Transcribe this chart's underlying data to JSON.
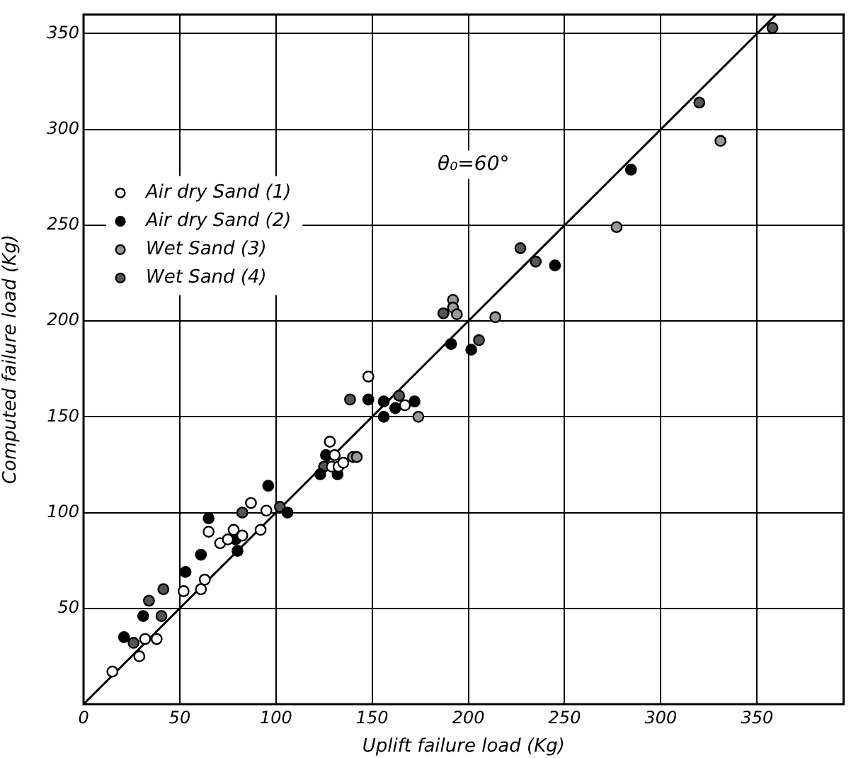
{
  "chart_data": {
    "type": "scatter",
    "xlabel": "Uplift failure load (Kg)",
    "ylabel": "Computed failure load (Kg)",
    "xlim": [
      0,
      395
    ],
    "ylim": [
      0,
      360
    ],
    "xticks": [
      0,
      50,
      100,
      150,
      200,
      250,
      300,
      350
    ],
    "yticks": [
      50,
      100,
      150,
      200,
      250,
      300,
      350
    ],
    "grid": true,
    "legend": "top left",
    "marker": "circle",
    "annotations": [
      "θ₀=60°"
    ],
    "series": [
      {
        "name": "Air dry Sand (1)",
        "color": "#ffffff",
        "x": [
          15,
          29,
          32,
          38,
          52,
          61,
          63,
          65,
          71,
          75,
          78,
          82.5,
          87,
          92,
          95,
          148,
          167,
          128,
          130.5,
          129,
          132.5,
          135
        ],
        "values": [
          17,
          25,
          34,
          34,
          59,
          60,
          65,
          90,
          84,
          86,
          91,
          88,
          105,
          91,
          101,
          171,
          156,
          137,
          130,
          124,
          124,
          126
        ]
      },
      {
        "name": "Air dry Sand (2)",
        "color": "#000000",
        "x": [
          21,
          31,
          53,
          61,
          65,
          79,
          80,
          96,
          106,
          148,
          156,
          162,
          172,
          156,
          191,
          201.5,
          245,
          284.5,
          126,
          123,
          132
        ],
        "values": [
          35,
          46,
          69,
          78,
          97,
          86,
          80,
          114,
          100,
          159,
          158,
          154.5,
          158,
          150,
          188,
          185,
          229,
          279,
          130,
          120,
          120
        ]
      },
      {
        "name": "Wet Sand (3)",
        "color": "#999999",
        "x": [
          192,
          192,
          194,
          214,
          174,
          277,
          331,
          140,
          142
        ],
        "values": [
          211,
          207,
          203.5,
          202,
          150,
          249,
          294,
          129,
          129
        ]
      },
      {
        "name": "Wet Sand (4)",
        "color": "#555555",
        "x": [
          26,
          34,
          40.5,
          41.5,
          82.5,
          102,
          138.5,
          164,
          187,
          205.5,
          227,
          235,
          320,
          358,
          125
        ],
        "values": [
          32,
          54,
          46,
          60,
          100,
          103,
          159,
          161,
          204,
          190,
          238,
          231,
          314,
          353,
          124
        ]
      },
      {
        "type": "line",
        "marker": "none",
        "color": "#000000",
        "x": [
          0,
          360
        ],
        "values": [
          0,
          360
        ]
      }
    ]
  }
}
